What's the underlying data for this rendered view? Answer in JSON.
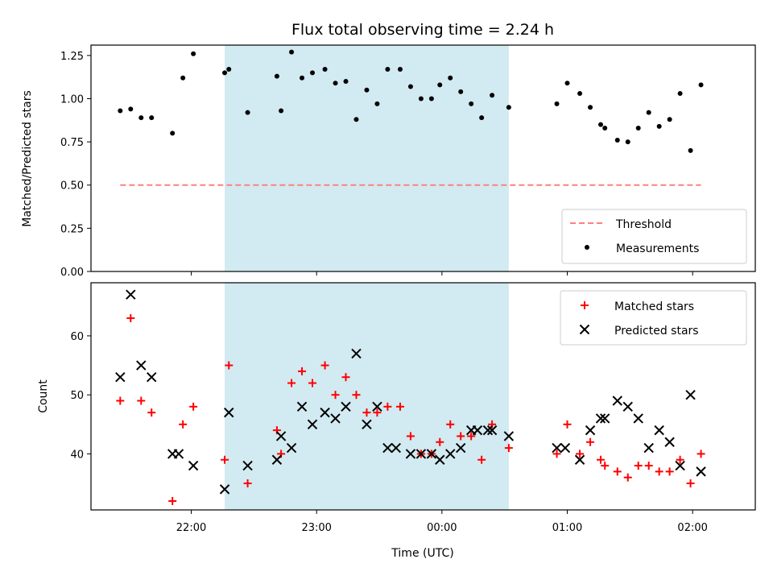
{
  "chart_data": [
    {
      "type": "scatter",
      "title": "Flux total observing time = 2.24 h",
      "ylabel": "Matched/Predicted stars",
      "xlabel": "",
      "ylim": [
        0,
        1.31
      ],
      "xlim": [
        "21:12",
        "02:30"
      ],
      "yticks": [
        "0.00",
        "0.25",
        "0.50",
        "0.75",
        "1.00",
        "1.25"
      ],
      "shaded_region": {
        "start": "22:16",
        "end": "00:32",
        "color": "#add8e6"
      },
      "threshold": {
        "name": "Threshold",
        "value": 0.5,
        "x_start": "21:26",
        "x_end": "02:04",
        "color": "#ff7f7f",
        "style": "dashed"
      },
      "series": [
        {
          "name": "Measurements",
          "marker": "dot",
          "color": "#000000",
          "points": [
            [
              "21:26",
              0.93
            ],
            [
              "21:31",
              0.94
            ],
            [
              "21:36",
              0.89
            ],
            [
              "21:41",
              0.89
            ],
            [
              "21:51",
              0.8
            ],
            [
              "21:56",
              1.12
            ],
            [
              "22:01",
              1.26
            ],
            [
              "22:16",
              1.15
            ],
            [
              "22:18",
              1.17
            ],
            [
              "22:27",
              0.92
            ],
            [
              "22:41",
              1.13
            ],
            [
              "22:43",
              0.93
            ],
            [
              "22:48",
              1.27
            ],
            [
              "22:53",
              1.12
            ],
            [
              "22:58",
              1.15
            ],
            [
              "23:04",
              1.17
            ],
            [
              "23:09",
              1.09
            ],
            [
              "23:14",
              1.1
            ],
            [
              "23:19",
              0.88
            ],
            [
              "23:24",
              1.05
            ],
            [
              "23:29",
              0.97
            ],
            [
              "23:34",
              1.17
            ],
            [
              "23:40",
              1.17
            ],
            [
              "23:45",
              1.07
            ],
            [
              "23:50",
              1.0
            ],
            [
              "23:55",
              1.0
            ],
            [
              "23:59",
              1.08
            ],
            [
              "00:04",
              1.12
            ],
            [
              "00:09",
              1.04
            ],
            [
              "00:14",
              0.97
            ],
            [
              "00:19",
              0.89
            ],
            [
              "00:24",
              1.02
            ],
            [
              "00:32",
              0.95
            ],
            [
              "00:55",
              0.97
            ],
            [
              "01:00",
              1.09
            ],
            [
              "01:06",
              1.03
            ],
            [
              "01:11",
              0.95
            ],
            [
              "01:16",
              0.85
            ],
            [
              "01:18",
              0.83
            ],
            [
              "01:24",
              0.76
            ],
            [
              "01:29",
              0.75
            ],
            [
              "01:34",
              0.83
            ],
            [
              "01:39",
              0.92
            ],
            [
              "01:44",
              0.84
            ],
            [
              "01:49",
              0.88
            ],
            [
              "01:54",
              1.03
            ],
            [
              "01:59",
              0.7
            ],
            [
              "02:04",
              1.08
            ]
          ]
        }
      ],
      "legend": {
        "position": "lower right",
        "entries": [
          "Threshold",
          "Measurements"
        ]
      }
    },
    {
      "type": "scatter",
      "title": "",
      "xlabel": "Time (UTC)",
      "ylabel": "Count",
      "ylim": [
        30.5,
        69
      ],
      "xlim": [
        "21:12",
        "02:30"
      ],
      "yticks": [
        "40",
        "50",
        "60"
      ],
      "xticks": [
        "22:00",
        "23:00",
        "00:00",
        "01:00",
        "02:00"
      ],
      "shaded_region": {
        "start": "22:16",
        "end": "00:32",
        "color": "#add8e6"
      },
      "series": [
        {
          "name": "Matched stars",
          "marker": "plus",
          "color": "#ff0000",
          "points": [
            [
              "21:26",
              49
            ],
            [
              "21:31",
              63
            ],
            [
              "21:36",
              49
            ],
            [
              "21:41",
              47
            ],
            [
              "21:51",
              32
            ],
            [
              "21:56",
              45
            ],
            [
              "22:01",
              48
            ],
            [
              "22:16",
              39
            ],
            [
              "22:18",
              55
            ],
            [
              "22:27",
              35
            ],
            [
              "22:41",
              44
            ],
            [
              "22:43",
              40
            ],
            [
              "22:48",
              52
            ],
            [
              "22:53",
              54
            ],
            [
              "22:58",
              52
            ],
            [
              "23:04",
              55
            ],
            [
              "23:09",
              50
            ],
            [
              "23:14",
              53
            ],
            [
              "23:19",
              50
            ],
            [
              "23:24",
              47
            ],
            [
              "23:29",
              47
            ],
            [
              "23:34",
              48
            ],
            [
              "23:40",
              48
            ],
            [
              "23:45",
              43
            ],
            [
              "23:50",
              40
            ],
            [
              "23:55",
              40
            ],
            [
              "23:59",
              42
            ],
            [
              "00:04",
              45
            ],
            [
              "00:09",
              43
            ],
            [
              "00:14",
              43
            ],
            [
              "00:19",
              39
            ],
            [
              "00:24",
              45
            ],
            [
              "00:32",
              41
            ],
            [
              "00:55",
              40
            ],
            [
              "01:00",
              45
            ],
            [
              "01:06",
              40
            ],
            [
              "01:11",
              42
            ],
            [
              "01:16",
              39
            ],
            [
              "01:18",
              38
            ],
            [
              "01:24",
              37
            ],
            [
              "01:29",
              36
            ],
            [
              "01:34",
              38
            ],
            [
              "01:39",
              38
            ],
            [
              "01:44",
              37
            ],
            [
              "01:49",
              37
            ],
            [
              "01:54",
              39
            ],
            [
              "01:59",
              35
            ],
            [
              "02:04",
              40
            ]
          ]
        },
        {
          "name": "Predicted stars",
          "marker": "x",
          "color": "#000000",
          "points": [
            [
              "21:26",
              53
            ],
            [
              "21:31",
              67
            ],
            [
              "21:36",
              55
            ],
            [
              "21:41",
              53
            ],
            [
              "21:51",
              40
            ],
            [
              "21:54",
              40
            ],
            [
              "22:01",
              38
            ],
            [
              "22:16",
              34
            ],
            [
              "22:18",
              47
            ],
            [
              "22:27",
              38
            ],
            [
              "22:41",
              39
            ],
            [
              "22:43",
              43
            ],
            [
              "22:48",
              41
            ],
            [
              "22:53",
              48
            ],
            [
              "22:58",
              45
            ],
            [
              "23:04",
              47
            ],
            [
              "23:09",
              46
            ],
            [
              "23:14",
              48
            ],
            [
              "23:19",
              57
            ],
            [
              "23:24",
              45
            ],
            [
              "23:29",
              48
            ],
            [
              "23:34",
              41
            ],
            [
              "23:38",
              41
            ],
            [
              "23:45",
              40
            ],
            [
              "23:50",
              40
            ],
            [
              "23:55",
              40
            ],
            [
              "23:59",
              39
            ],
            [
              "00:04",
              40
            ],
            [
              "00:09",
              41
            ],
            [
              "00:14",
              44
            ],
            [
              "00:17",
              44
            ],
            [
              "00:22",
              44
            ],
            [
              "00:24",
              44
            ],
            [
              "00:32",
              43
            ],
            [
              "00:55",
              41
            ],
            [
              "00:59",
              41
            ],
            [
              "01:06",
              39
            ],
            [
              "01:11",
              44
            ],
            [
              "01:16",
              46
            ],
            [
              "01:18",
              46
            ],
            [
              "01:24",
              49
            ],
            [
              "01:29",
              48
            ],
            [
              "01:34",
              46
            ],
            [
              "01:39",
              41
            ],
            [
              "01:44",
              44
            ],
            [
              "01:49",
              42
            ],
            [
              "01:54",
              38
            ],
            [
              "01:59",
              50
            ],
            [
              "02:04",
              37
            ]
          ]
        }
      ],
      "legend": {
        "position": "upper right",
        "entries": [
          "Matched stars",
          "Predicted stars"
        ]
      }
    }
  ]
}
